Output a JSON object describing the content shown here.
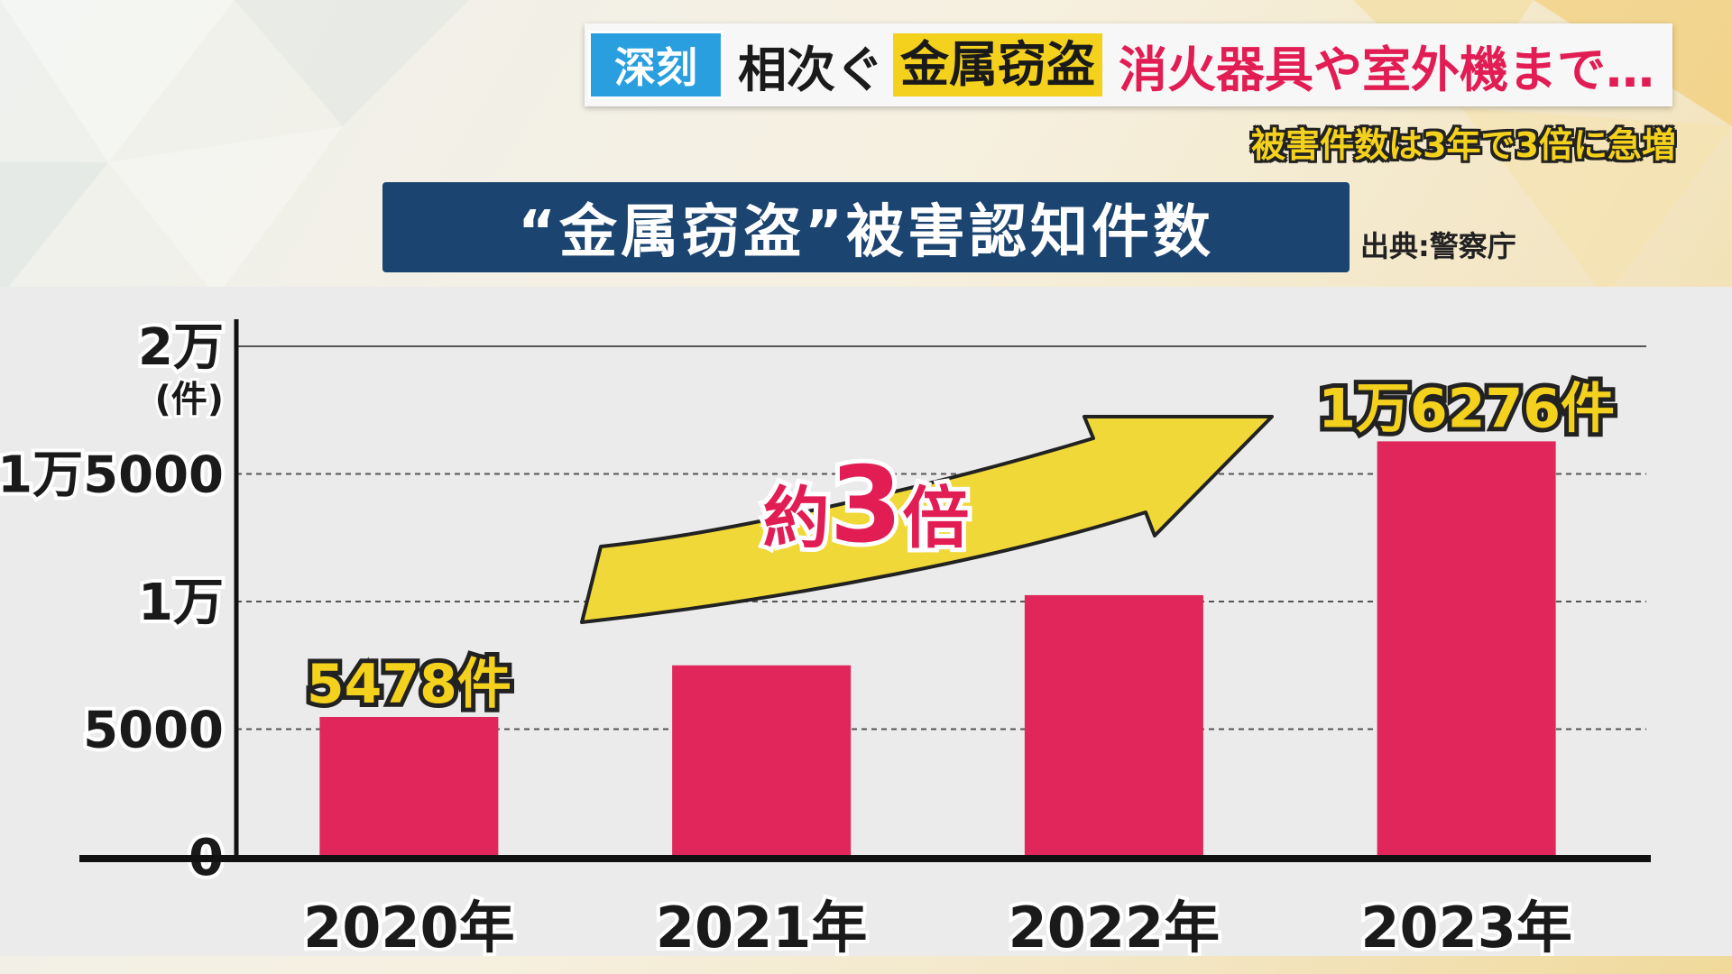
{
  "headline": {
    "tag": "深刻",
    "part1": "相次ぐ",
    "highlight": "金属窃盗",
    "part2": "消火器具や室外機まで…"
  },
  "subheadline": "被害件数は3年で3倍に急増",
  "source": "出典:警察庁",
  "colors": {
    "bar": "#e0265a",
    "title_bg": "#1b4470",
    "highlight": "#f4d11d",
    "arrow": "#efd838",
    "red_text": "#e21d54",
    "tag_bg": "#2a9fe0"
  },
  "chart_data": {
    "type": "bar",
    "title": "“金属窃盗”被害認知件数",
    "categories": [
      "2020年",
      "2021年",
      "2022年",
      "2023年"
    ],
    "values": [
      5478,
      7500,
      10250,
      16276
    ],
    "ylim": [
      0,
      20000
    ],
    "yticks": [
      {
        "value": 0,
        "label": "0"
      },
      {
        "value": 5000,
        "label": "5000"
      },
      {
        "value": 10000,
        "label": "1万"
      },
      {
        "value": 15000,
        "label": "1万5000"
      },
      {
        "value": 20000,
        "label": "2万"
      }
    ],
    "y_unit": "(件)",
    "data_labels": [
      {
        "index": 0,
        "text": "5478件"
      },
      {
        "index": 3,
        "text": "1万6276件"
      }
    ],
    "annotation": {
      "prefix": "約",
      "number": "3",
      "suffix": "倍"
    },
    "grid": true
  }
}
